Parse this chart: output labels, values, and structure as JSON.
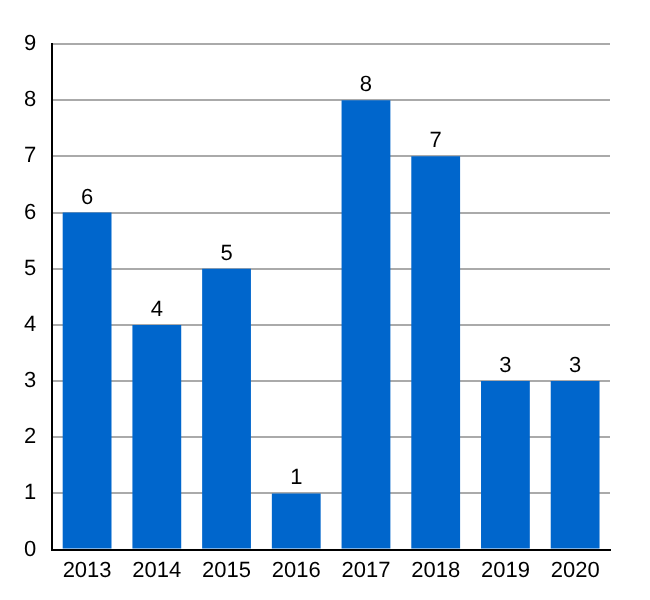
{
  "chart_data": {
    "type": "bar",
    "categories": [
      "2013",
      "2014",
      "2015",
      "2016",
      "2017",
      "2018",
      "2019",
      "2020"
    ],
    "values": [
      6,
      4,
      5,
      1,
      8,
      7,
      3,
      3
    ],
    "color": "#0066cc",
    "ylim": [
      0,
      9
    ],
    "yticks": [
      0,
      1,
      2,
      3,
      4,
      5,
      6,
      7,
      8,
      9
    ],
    "grid": "y",
    "data_labels": true
  }
}
